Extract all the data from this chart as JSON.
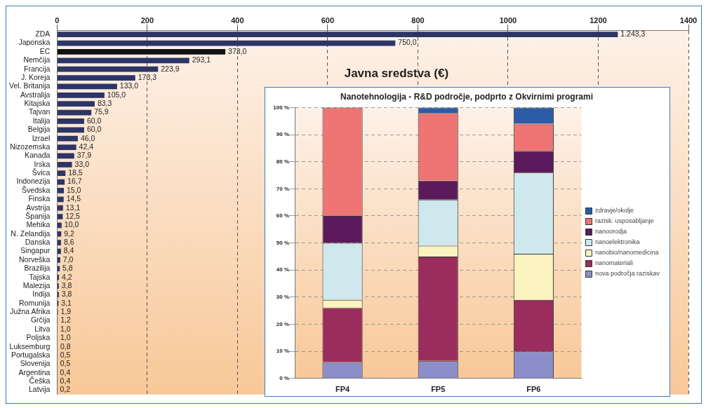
{
  "chart_data": [
    {
      "type": "bar",
      "orientation": "horizontal",
      "title": "Javna sredstva (€)",
      "categories": [
        "ZDA",
        "Japonska",
        "EC",
        "Nemčija",
        "Francija",
        "J. Koreja",
        "Vel. Britanija",
        "Avstralija",
        "Kitajska",
        "Tajvan",
        "Italija",
        "Belgija",
        "Izrael",
        "Nizozemska",
        "Kanada",
        "Irska",
        "Švica",
        "Indonezija",
        "Švedska",
        "Finska",
        "Avstrija",
        "Španija",
        "Mehika",
        "N. Zelandija",
        "Danska",
        "Singapur",
        "Norveška",
        "Brazilija",
        "Tajska",
        "Malezija",
        "Indija",
        "Romunija",
        "Južna Afrika",
        "Grčija",
        "Litva",
        "Poljska",
        "Luksemburg",
        "Portugalska",
        "Slovenija",
        "Argentina",
        "Češka",
        "Latvija"
      ],
      "values": [
        1243.3,
        750.0,
        373.0,
        293.1,
        223.9,
        173.3,
        133.0,
        105.0,
        83.3,
        75.9,
        60.0,
        60.0,
        46.0,
        42.4,
        37.9,
        33.0,
        18.5,
        16.7,
        15.0,
        14.5,
        13.1,
        12.5,
        10.0,
        9.2,
        8.6,
        8.4,
        7.0,
        5.8,
        4.2,
        3.8,
        3.8,
        3.1,
        1.9,
        1.2,
        1.0,
        1.0,
        0.8,
        0.5,
        0.5,
        0.4,
        0.4,
        0.2
      ],
      "value_labels": [
        "1.243,3",
        "750,0",
        "373,0",
        "293,1",
        "223,9",
        "173,3",
        "133,0",
        "105,0",
        "83,3",
        "75,9",
        "60,0",
        "60,0",
        "46,0",
        "42,4",
        "37,9",
        "33,0",
        "18,5",
        "16,7",
        "15,0",
        "14,5",
        "13,1",
        "12,5",
        "10,0",
        "9,2",
        "8,6",
        "8,4",
        "7,0",
        "5,8",
        "4,2",
        "3,8",
        "3,8",
        "3,1",
        "1,9",
        "1,2",
        "1,0",
        "1,0",
        "0,8",
        "0,5",
        "0,5",
        "0,4",
        "0,4",
        "0,2"
      ],
      "colors": [
        "#2b3566",
        "#2b3566",
        "#111111",
        "#2b3566",
        "#2b3566",
        "#2b3566",
        "#2b3566",
        "#2b3566",
        "#2b3566",
        "#2b3566",
        "#2b3566",
        "#2b3566",
        "#2b3566",
        "#2b3566",
        "#2b3566",
        "#2b3566",
        "#2b3566",
        "#2b3566",
        "#2b3566",
        "#2b3566",
        "#2b3566",
        "#2b3566",
        "#2b3566",
        "#2b3566",
        "#2b3566",
        "#2b3566",
        "#2b3566",
        "#2b3566",
        "#2b3566",
        "#2b3566",
        "#2b3566",
        "#2b3566",
        "#2b3566",
        "#2b3566",
        "#2b3566",
        "#2b3566",
        "#2b3566",
        "#2b3566",
        "#2b3566",
        "#2b3566",
        "#2b3566",
        "#2b3566"
      ],
      "xlim": [
        0,
        1400
      ],
      "xticks": [
        0,
        200,
        400,
        600,
        800,
        1000,
        1200,
        1400
      ],
      "grid": "x",
      "legend": false
    },
    {
      "type": "bar",
      "stacked": true,
      "title": "Nanotehnologija - R&D področje, podprto z Okvirnimi programi",
      "categories": [
        "FP4",
        "FP5",
        "FP6"
      ],
      "series": [
        {
          "name": "nova področja raziskav",
          "color": "#8c8ec9",
          "values": [
            6,
            6.5,
            10
          ]
        },
        {
          "name": "nanomateriali",
          "color": "#9a2d5d",
          "values": [
            20,
            38.5,
            19
          ]
        },
        {
          "name": "nanobio/nanomedicina",
          "color": "#fbf3c0",
          "values": [
            3,
            4,
            17
          ]
        },
        {
          "name": "nanoelektronika",
          "color": "#cfe8ee",
          "values": [
            21,
            17,
            30
          ]
        },
        {
          "name": "nanoorodja",
          "color": "#5c1a5c",
          "values": [
            10,
            7,
            8
          ]
        },
        {
          "name": "razisk. usposabljanje",
          "color": "#ef7474",
          "values": [
            40,
            25,
            10
          ]
        },
        {
          "name": "zdravje/okolje",
          "color": "#2c5ca6",
          "values": [
            0,
            2,
            6
          ]
        }
      ],
      "ylim": [
        0,
        100
      ],
      "yticks": [
        {
          "value": 0,
          "label": "0 %"
        },
        {
          "value": 10,
          "label": "10 %"
        },
        {
          "value": 20,
          "label": "20 %"
        },
        {
          "value": 30,
          "label": "30 %"
        },
        {
          "value": 40,
          "label": "40 %"
        },
        {
          "value": 50,
          "label": "50 %"
        },
        {
          "value": 60,
          "label": "60 %"
        },
        {
          "value": 70,
          "label": "70 %"
        },
        {
          "value": 80,
          "label": "80 %"
        },
        {
          "value": 90,
          "label": "90 %"
        },
        {
          "value": 100,
          "label": "100 %"
        }
      ],
      "grid": "y",
      "legend": "right"
    }
  ]
}
